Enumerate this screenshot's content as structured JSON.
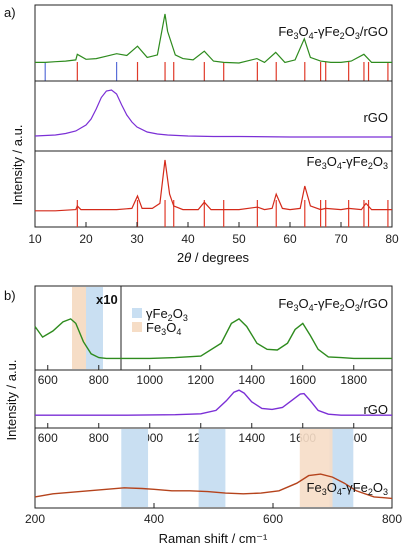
{
  "panel_a": {
    "label": "a)",
    "ylabel": "Intensity / a.u.",
    "xlabel_prefix": "2",
    "xlabel_theta": "θ",
    "xlabel_suffix": " / degrees",
    "x_ticks": [
      "10",
      "20",
      "30",
      "40",
      "50",
      "60",
      "70",
      "80"
    ],
    "sample_names": {
      "composite": "Fe3O4-γFe2O3/rGO",
      "rgo": "rGO",
      "oxide": "Fe3O4-γFe2O3"
    }
  },
  "panel_b": {
    "label": "b)",
    "ylabel": "Intensity / a.u.",
    "xlabel": "Raman shift / cm⁻¹",
    "x_ticks_bottom": [
      "200",
      "400",
      "600",
      "800"
    ],
    "x_ticks_upper": [
      "600",
      "800",
      "1000",
      "1200",
      "1400",
      "1600",
      "1800"
    ],
    "x10_label": "x10",
    "legend": [
      {
        "label": "γFe2O3",
        "color": "#c9dff2"
      },
      {
        "label": "Fe3O4",
        "color": "#f6ddc6"
      }
    ],
    "sample_names": {
      "composite": "Fe3O4-γFe2O3/rGO",
      "rgo": "rGO",
      "oxide": "Fe3O4-γFe2O3"
    }
  },
  "colors": {
    "green": "#2e8b1e",
    "purple": "#7b2fd6",
    "red": "#d42a1a",
    "brown": "#b5431c",
    "ref_red": "#e03a2a",
    "ref_blue": "#5a6fd8",
    "band_blue": "#c9dff2",
    "band_orange": "#f6ddc6"
  },
  "chart_data": [
    {
      "type": "line",
      "panel": "a",
      "xlim": [
        10,
        80
      ],
      "xlabel": "2θ / degrees",
      "ylabel": "Intensity / a.u.",
      "series": [
        {
          "name": "Fe3O4-γFe2O3/rGO",
          "color": "#2e8b1e",
          "x": [
            10,
            12,
            14,
            16,
            18,
            18.3,
            20,
            22,
            24,
            26,
            28,
            30.1,
            32,
            34,
            35.5,
            36,
            37.5,
            39,
            41,
            43.2,
            45,
            47,
            50,
            53.5,
            55,
            57.2,
            59,
            61,
            62.8,
            64,
            66,
            68,
            70,
            72,
            74.5,
            76,
            78,
            80
          ],
          "y": [
            0.22,
            0.22,
            0.23,
            0.24,
            0.26,
            0.35,
            0.27,
            0.28,
            0.32,
            0.36,
            0.33,
            0.48,
            0.3,
            0.34,
            1.0,
            0.72,
            0.34,
            0.28,
            0.26,
            0.4,
            0.24,
            0.22,
            0.21,
            0.28,
            0.22,
            0.38,
            0.22,
            0.26,
            0.6,
            0.3,
            0.24,
            0.22,
            0.22,
            0.24,
            0.35,
            0.22,
            0.22,
            0.22
          ]
        },
        {
          "name": "rGO",
          "color": "#7b2fd6",
          "x": [
            10,
            12,
            14,
            16,
            18,
            20,
            21,
            22,
            23,
            24,
            25,
            26,
            27,
            28,
            29,
            30,
            32,
            34,
            36,
            40,
            45,
            50,
            60,
            70,
            80
          ],
          "y": [
            0.08,
            0.09,
            0.1,
            0.13,
            0.18,
            0.3,
            0.42,
            0.62,
            0.85,
            0.98,
            1.0,
            0.92,
            0.7,
            0.5,
            0.36,
            0.26,
            0.16,
            0.12,
            0.1,
            0.08,
            0.07,
            0.07,
            0.06,
            0.06,
            0.06
          ]
        },
        {
          "name": "Fe3O4-γFe2O3",
          "color": "#d42a1a",
          "x": [
            10,
            12,
            14,
            16,
            18,
            18.3,
            19,
            22,
            26,
            29,
            30.1,
            31,
            33,
            34.5,
            35.5,
            36.4,
            37.2,
            39,
            42,
            43.2,
            44.5,
            47,
            50,
            53.6,
            55,
            56.5,
            57.3,
            58.5,
            60,
            62,
            62.9,
            64,
            66,
            67,
            70,
            71.5,
            74,
            74.9,
            76,
            78,
            80
          ],
          "y": [
            0.18,
            0.18,
            0.18,
            0.19,
            0.2,
            0.26,
            0.2,
            0.2,
            0.2,
            0.22,
            0.42,
            0.22,
            0.22,
            0.3,
            1.0,
            0.45,
            0.26,
            0.2,
            0.2,
            0.32,
            0.2,
            0.2,
            0.2,
            0.24,
            0.2,
            0.22,
            0.45,
            0.22,
            0.2,
            0.22,
            0.58,
            0.26,
            0.2,
            0.22,
            0.2,
            0.22,
            0.2,
            0.3,
            0.2,
            0.2,
            0.2
          ]
        }
      ],
      "reference_lines": {
        "red": [
          18.3,
          30.1,
          35.5,
          37.2,
          43.2,
          47.0,
          53.6,
          57.3,
          62.9,
          66.0,
          67.0,
          71.5,
          74.5,
          75.4,
          79.2
        ],
        "blue": [
          26.0
        ]
      }
    },
    {
      "type": "line",
      "panel": "b-composite",
      "xlim": [
        550,
        1950
      ],
      "series": [
        {
          "name": "Fe3O4-γFe2O3/rGO",
          "color": "#2e8b1e",
          "x": [
            550,
            580,
            620,
            660,
            690,
            710,
            740,
            770,
            800,
            830,
            850,
            900,
            1000,
            1100,
            1200,
            1280,
            1320,
            1350,
            1380,
            1420,
            1460,
            1500,
            1540,
            1570,
            1600,
            1630,
            1660,
            1700,
            1750,
            1800,
            1850,
            1900,
            1950
          ],
          "y": [
            0.52,
            0.38,
            0.46,
            0.58,
            0.62,
            0.56,
            0.32,
            0.16,
            0.11,
            0.1,
            0.1,
            0.1,
            0.1,
            0.11,
            0.13,
            0.3,
            0.56,
            0.62,
            0.52,
            0.3,
            0.22,
            0.21,
            0.3,
            0.48,
            0.56,
            0.4,
            0.22,
            0.12,
            0.11,
            0.1,
            0.1,
            0.1,
            0.1
          ]
        }
      ]
    },
    {
      "type": "line",
      "panel": "b-rgo",
      "xlim": [
        550,
        1950
      ],
      "series": [
        {
          "name": "rGO",
          "color": "#7b2fd6",
          "x": [
            550,
            700,
            900,
            1100,
            1200,
            1260,
            1300,
            1330,
            1350,
            1370,
            1400,
            1440,
            1480,
            1520,
            1560,
            1590,
            1605,
            1630,
            1660,
            1700,
            1750,
            1800,
            1900,
            1950
          ],
          "y": [
            0.1,
            0.1,
            0.1,
            0.11,
            0.13,
            0.2,
            0.4,
            0.58,
            0.62,
            0.56,
            0.38,
            0.24,
            0.22,
            0.26,
            0.42,
            0.54,
            0.55,
            0.4,
            0.2,
            0.12,
            0.1,
            0.1,
            0.1,
            0.1
          ]
        }
      ]
    },
    {
      "type": "line",
      "panel": "b-oxide",
      "xlim": [
        200,
        800
      ],
      "xlabel": "Raman shift / cm⁻¹",
      "series": [
        {
          "name": "Fe3O4-γFe2O3",
          "color": "#b5431c",
          "x": [
            200,
            230,
            260,
            290,
            320,
            350,
            380,
            400,
            430,
            460,
            490,
            520,
            550,
            580,
            610,
            640,
            660,
            680,
            700,
            720,
            740,
            770,
            800
          ],
          "y": [
            0.12,
            0.16,
            0.18,
            0.2,
            0.22,
            0.24,
            0.23,
            0.22,
            0.2,
            0.2,
            0.19,
            0.17,
            0.16,
            0.17,
            0.2,
            0.3,
            0.4,
            0.42,
            0.38,
            0.3,
            0.2,
            0.12,
            0.1
          ]
        }
      ],
      "bands": {
        "blue": [
          [
            345,
            390
          ],
          [
            475,
            520
          ],
          [
            695,
            735
          ]
        ],
        "orange": [
          [
            645,
            700
          ]
        ]
      }
    }
  ]
}
